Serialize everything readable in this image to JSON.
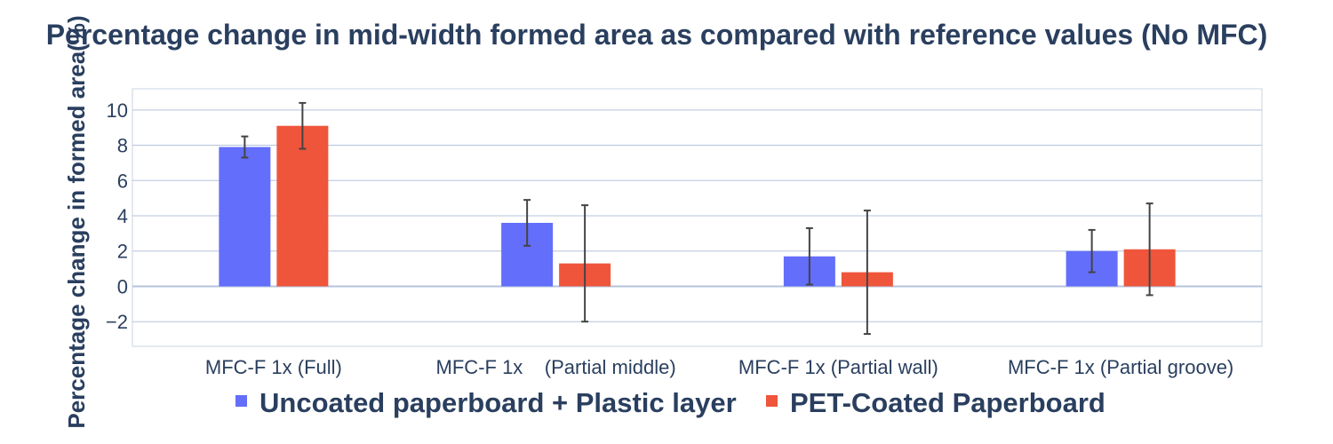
{
  "chart_data": {
    "type": "bar",
    "title": "Percentage change in mid-width formed area as compared with reference values (No MFC)",
    "xlabel": "",
    "ylabel": "Percentage change in formed area(%)",
    "categories": [
      "MFC-F 1x (Full)",
      "MFC-F 1x    (Partial middle)",
      "MFC-F 1x (Partial wall)",
      "MFC-F 1x (Partial groove)"
    ],
    "series": [
      {
        "name": "Uncoated paperboard + Plastic layer",
        "color": "#636efa",
        "values": [
          7.9,
          3.6,
          1.7,
          2.0
        ],
        "error_low": [
          7.3,
          2.3,
          0.1,
          0.8
        ],
        "error_high": [
          8.5,
          4.9,
          3.3,
          3.2
        ]
      },
      {
        "name": "PET-Coated Paperboard",
        "color": "#ef553b",
        "values": [
          9.1,
          1.3,
          0.8,
          2.1
        ],
        "error_low": [
          7.8,
          -2.0,
          -2.7,
          -0.5
        ],
        "error_high": [
          10.4,
          4.6,
          4.3,
          4.7
        ]
      }
    ],
    "ylim": [
      -3.4,
      11.2
    ],
    "yticks": [
      "10",
      "8",
      "6",
      "4",
      "2",
      "0",
      "−2"
    ],
    "ytick_values": [
      10,
      8,
      6,
      4,
      2,
      0,
      -2
    ],
    "grid": true,
    "legend_position": "bottom"
  }
}
